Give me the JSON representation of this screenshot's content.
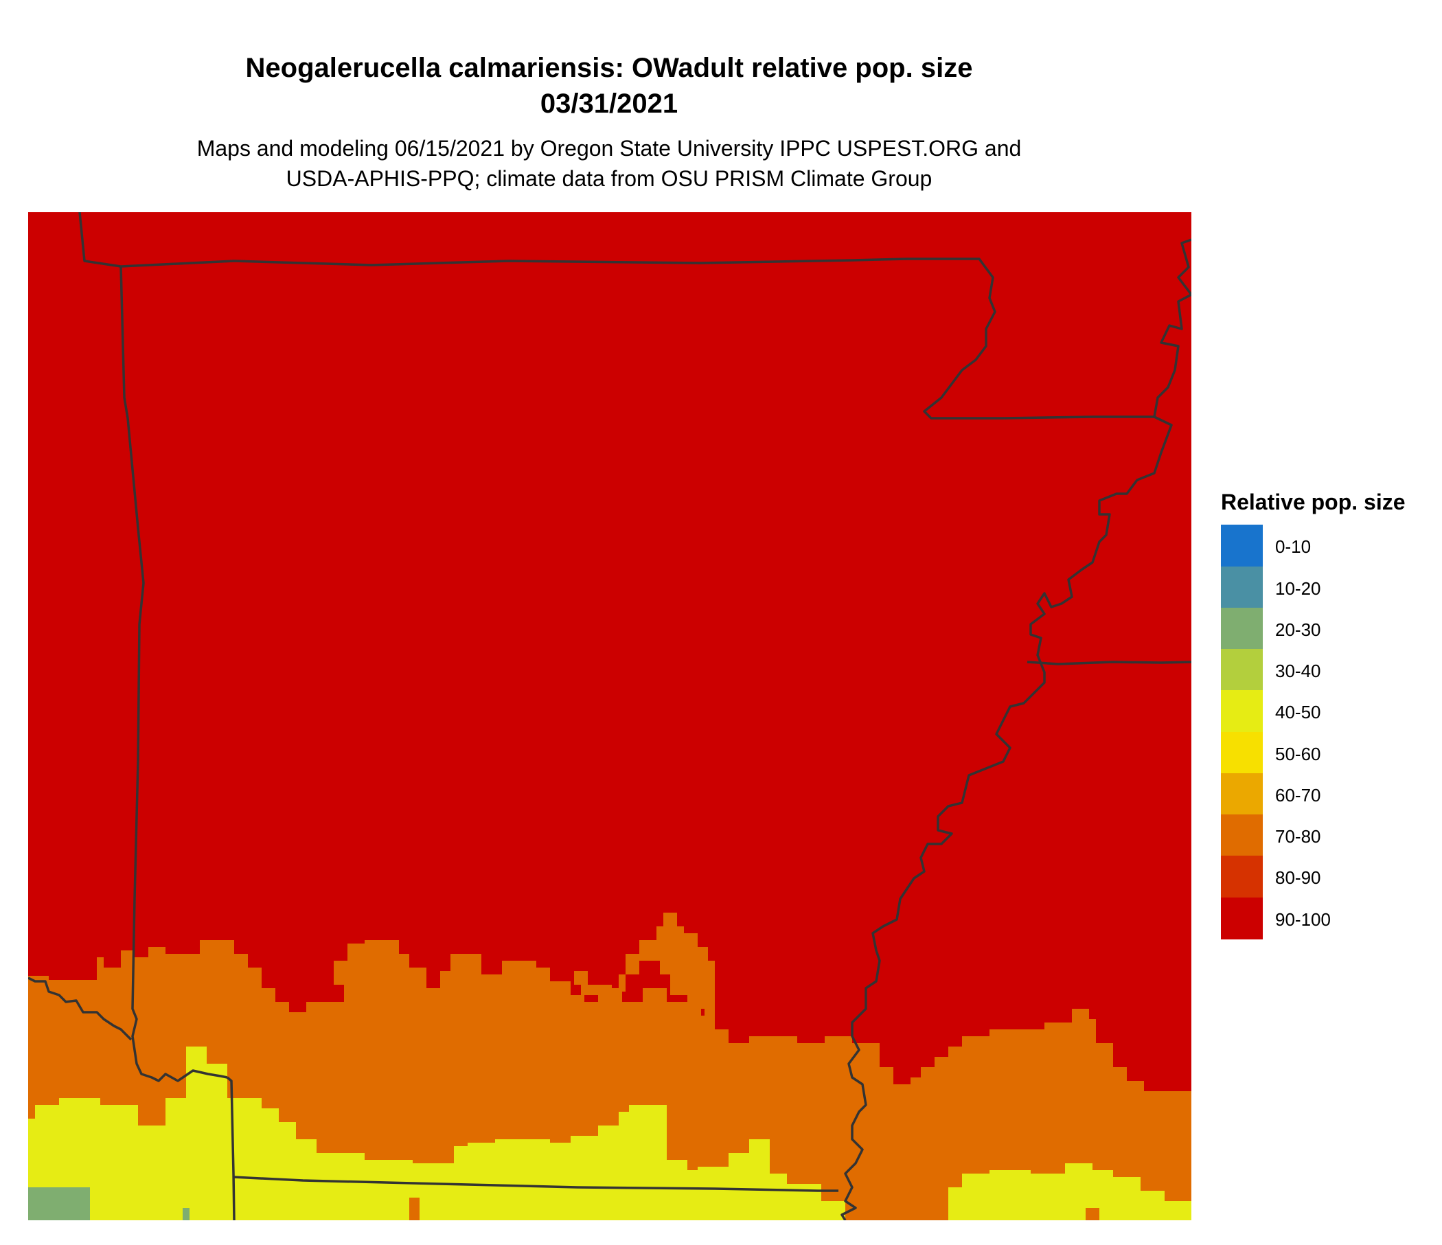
{
  "title_line1": "Neogalerucella calmariensis: OWadult relative pop. size",
  "title_line2": "03/31/2021",
  "subtitle_line1": "Maps and modeling 06/15/2021 by Oregon State University IPPC USPEST.ORG and",
  "subtitle_line2": "USDA-APHIS-PPQ; climate data from OSU PRISM Climate Group",
  "legend": {
    "title": "Relative pop. size",
    "items": [
      {
        "label": "0-10",
        "color": "#1874cd"
      },
      {
        "label": "10-20",
        "color": "#4a90a4"
      },
      {
        "label": "20-30",
        "color": "#7fae70"
      },
      {
        "label": "30-40",
        "color": "#b3cf3d"
      },
      {
        "label": "40-50",
        "color": "#e6ec14"
      },
      {
        "label": "50-60",
        "color": "#f7e000"
      },
      {
        "label": "60-70",
        "color": "#eba800"
      },
      {
        "label": "70-80",
        "color": "#e06c00"
      },
      {
        "label": "80-90",
        "color": "#d63200"
      },
      {
        "label": "90-100",
        "color": "#cc0000"
      }
    ]
  }
}
